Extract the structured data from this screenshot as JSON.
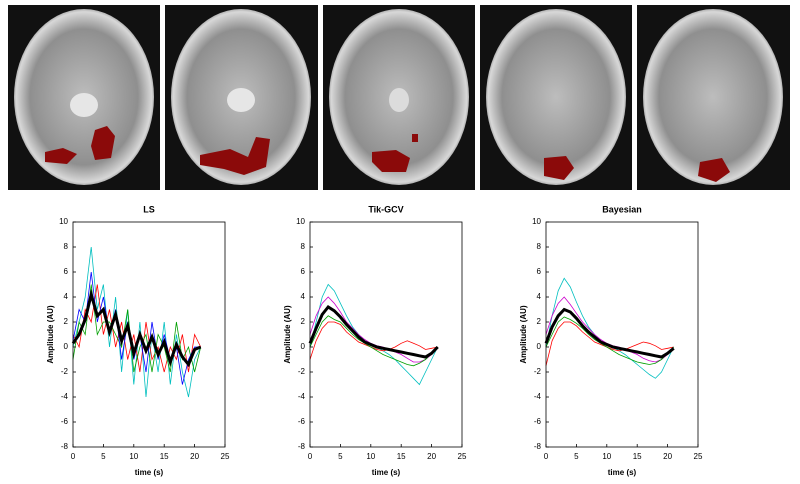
{
  "chart_data": [
    {
      "type": "line",
      "title": "LS",
      "xlabel": "time (s)",
      "ylabel": "Amplitude (AU)",
      "x": [
        0,
        1,
        2,
        3,
        4,
        5,
        6,
        7,
        8,
        9,
        10,
        11,
        12,
        13,
        14,
        15,
        16,
        17,
        18,
        19,
        20,
        21
      ],
      "xlim": [
        0,
        25
      ],
      "xticks": [
        0,
        5,
        10,
        15,
        20,
        25
      ],
      "ylim": [
        -8,
        10
      ],
      "yticks": [
        -8,
        -6,
        -4,
        -2,
        0,
        2,
        4,
        6,
        8,
        10
      ],
      "series": [
        {
          "color": "#00bfbf",
          "values": [
            0,
            2,
            4,
            8,
            3,
            5,
            0,
            4,
            -2,
            3,
            -3,
            2,
            -4,
            1,
            -2,
            2,
            -3,
            1,
            -2,
            -4,
            -1,
            0
          ]
        },
        {
          "color": "#ff0000",
          "values": [
            1,
            0,
            3,
            2,
            5,
            1,
            3,
            0,
            2,
            -1,
            1,
            -2,
            2,
            -1,
            0,
            -2,
            0,
            -1,
            1,
            -2,
            1,
            0
          ]
        },
        {
          "color": "#00a000",
          "values": [
            -1,
            2,
            1,
            5,
            1,
            2,
            2,
            1,
            0,
            3,
            -2,
            0,
            1,
            -2,
            1,
            0,
            -2,
            2,
            -1,
            0,
            -2,
            0
          ]
        },
        {
          "color": "#0000ff",
          "values": [
            0.5,
            3,
            2,
            6,
            2,
            4,
            1,
            3,
            -1,
            2,
            -1,
            1,
            -2,
            2,
            -1,
            1,
            -1,
            0,
            -3,
            -1,
            0,
            0
          ]
        },
        {
          "color": "#000000",
          "values": [
            0.3,
            1,
            2.2,
            4.2,
            2.5,
            3,
            1.2,
            2.6,
            0.5,
            1.7,
            -0.5,
            1,
            -0.3,
            0.8,
            -0.6,
            0.4,
            -1.2,
            0.2,
            -0.8,
            -1.4,
            -0.2,
            0
          ]
        }
      ]
    },
    {
      "type": "line",
      "title": "Tik-GCV",
      "xlabel": "time (s)",
      "ylabel": "Amplitude (AU)",
      "x": [
        0,
        1,
        2,
        3,
        4,
        5,
        6,
        7,
        8,
        9,
        10,
        11,
        12,
        13,
        14,
        15,
        16,
        17,
        18,
        19,
        20,
        21
      ],
      "xlim": [
        0,
        25
      ],
      "xticks": [
        0,
        5,
        10,
        15,
        20,
        25
      ],
      "ylim": [
        -8,
        10
      ],
      "yticks": [
        -8,
        -6,
        -4,
        -2,
        0,
        2,
        4,
        6,
        8,
        10
      ],
      "series": [
        {
          "color": "#00bfbf",
          "values": [
            0,
            2,
            4,
            5,
            4.5,
            3.5,
            2.5,
            1.6,
            1,
            0.5,
            0.2,
            0,
            -0.3,
            -0.6,
            -1,
            -1.5,
            -2,
            -2.5,
            -3,
            -2,
            -1,
            0
          ]
        },
        {
          "color": "#ff0000",
          "values": [
            -1,
            0.5,
            1.5,
            2,
            2,
            1.8,
            1.2,
            0.8,
            0.4,
            0.2,
            0,
            -0.2,
            -0.3,
            -0.2,
            0,
            0.3,
            0.5,
            0.3,
            0.1,
            -0.2,
            -0.1,
            0
          ]
        },
        {
          "color": "#cc00cc",
          "values": [
            1,
            2.5,
            3.5,
            4,
            3.5,
            2.8,
            2,
            1.5,
            1,
            0.6,
            0.3,
            0.1,
            0,
            -0.2,
            -0.4,
            -0.6,
            -0.9,
            -1.2,
            -1.2,
            -1,
            -0.6,
            0
          ]
        },
        {
          "color": "#00a000",
          "values": [
            0,
            1,
            2,
            2.5,
            2.2,
            2,
            1.5,
            1,
            0.6,
            0.3,
            0,
            -0.3,
            -0.6,
            -0.8,
            -1,
            -1.2,
            -1.4,
            -1.5,
            -1.3,
            -1,
            -0.5,
            0
          ]
        },
        {
          "color": "#000000",
          "values": [
            0.3,
            1.5,
            2.6,
            3.2,
            2.9,
            2.4,
            1.8,
            1.3,
            0.8,
            0.4,
            0.2,
            0,
            -0.1,
            -0.2,
            -0.3,
            -0.4,
            -0.5,
            -0.6,
            -0.7,
            -0.8,
            -0.5,
            0
          ]
        }
      ]
    },
    {
      "type": "line",
      "title": "Bayesian",
      "xlabel": "time (s)",
      "ylabel": "Amplitude (AU)",
      "x": [
        0,
        1,
        2,
        3,
        4,
        5,
        6,
        7,
        8,
        9,
        10,
        11,
        12,
        13,
        14,
        15,
        16,
        17,
        18,
        19,
        20,
        21
      ],
      "xlim": [
        0,
        25
      ],
      "xticks": [
        0,
        5,
        10,
        15,
        20,
        25
      ],
      "ylim": [
        -8,
        10
      ],
      "yticks": [
        -8,
        -6,
        -4,
        -2,
        0,
        2,
        4,
        6,
        8,
        10
      ],
      "series": [
        {
          "color": "#00bfbf",
          "values": [
            0,
            2.5,
            4.5,
            5.5,
            4.8,
            3.6,
            2.5,
            1.6,
            1,
            0.5,
            0.2,
            0,
            -0.3,
            -0.6,
            -1,
            -1.4,
            -1.8,
            -2.2,
            -2.5,
            -2,
            -1,
            0
          ]
        },
        {
          "color": "#ff0000",
          "values": [
            -1.5,
            0.5,
            1.5,
            2,
            2,
            1.7,
            1.2,
            0.8,
            0.4,
            0.2,
            0,
            -0.2,
            -0.3,
            -0.2,
            0,
            0.2,
            0.4,
            0.3,
            0.1,
            -0.2,
            -0.1,
            0
          ]
        },
        {
          "color": "#cc00cc",
          "values": [
            1,
            2.5,
            3.5,
            4,
            3.4,
            2.7,
            2,
            1.5,
            1,
            0.6,
            0.3,
            0.1,
            0,
            -0.2,
            -0.4,
            -0.6,
            -0.9,
            -1.1,
            -1.2,
            -1,
            -0.6,
            0
          ]
        },
        {
          "color": "#00a000",
          "values": [
            0,
            1,
            2,
            2.4,
            2.2,
            1.9,
            1.5,
            1,
            0.6,
            0.3,
            0,
            -0.3,
            -0.6,
            -0.8,
            -1,
            -1.2,
            -1.3,
            -1.4,
            -1.3,
            -1,
            -0.5,
            0
          ]
        },
        {
          "color": "#000000",
          "values": [
            0.3,
            1.6,
            2.5,
            3,
            2.8,
            2.3,
            1.7,
            1.2,
            0.8,
            0.4,
            0.2,
            0,
            -0.1,
            -0.2,
            -0.3,
            -0.4,
            -0.5,
            -0.6,
            -0.7,
            -0.8,
            -0.5,
            -0.1
          ]
        }
      ]
    }
  ]
}
